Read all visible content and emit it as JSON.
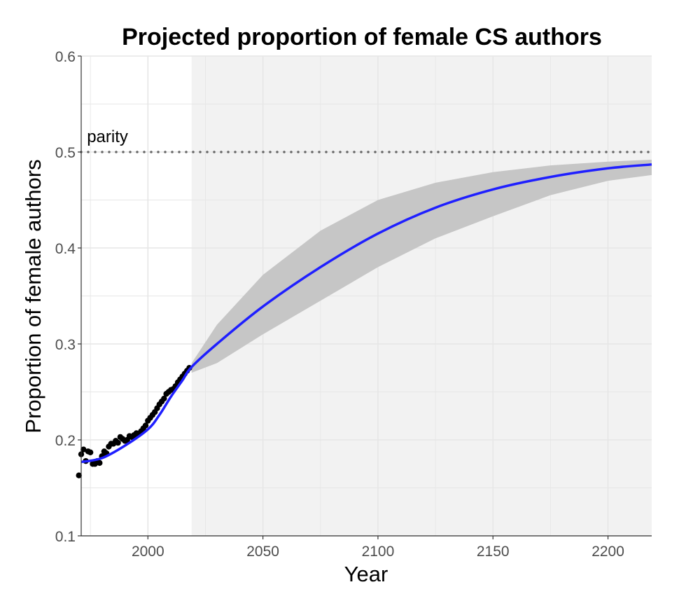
{
  "chart_data": {
    "type": "line",
    "title": "Projected proportion of female CS authors",
    "xlabel": "Year",
    "ylabel": "Proportion of female authors",
    "xlim": [
      1971,
      2219
    ],
    "ylim": [
      0.1,
      0.6
    ],
    "x_ticks": [
      2000,
      2050,
      2100,
      2150,
      2200
    ],
    "x_tick_labels": [
      "2000",
      "2050",
      "2100",
      "2150",
      "2200"
    ],
    "y_ticks": [
      0.1,
      0.2,
      0.3,
      0.4,
      0.5,
      0.6
    ],
    "y_tick_labels": [
      "0.1",
      "0.2",
      "0.3",
      "0.4",
      "0.5",
      "0.6"
    ],
    "grid": true,
    "projection_start": 2019,
    "reference_line": {
      "y": 0.5,
      "label": "parity",
      "style": "dotted"
    },
    "observed": {
      "x": [
        1970,
        1971,
        1972,
        1973,
        1974,
        1975,
        1976,
        1977,
        1978,
        1979,
        1980,
        1981,
        1982,
        1983,
        1984,
        1985,
        1986,
        1987,
        1988,
        1989,
        1990,
        1991,
        1992,
        1993,
        1994,
        1995,
        1996,
        1997,
        1998,
        1999,
        2000,
        2001,
        2002,
        2003,
        2004,
        2005,
        2006,
        2007,
        2008,
        2009,
        2010,
        2011,
        2012,
        2013,
        2014,
        2015,
        2016,
        2017,
        2018
      ],
      "y": [
        0.163,
        0.185,
        0.19,
        0.178,
        0.188,
        0.187,
        0.175,
        0.175,
        0.178,
        0.176,
        0.183,
        0.188,
        0.186,
        0.193,
        0.196,
        0.196,
        0.199,
        0.197,
        0.203,
        0.201,
        0.199,
        0.2,
        0.204,
        0.203,
        0.205,
        0.207,
        0.206,
        0.209,
        0.212,
        0.215,
        0.22,
        0.223,
        0.226,
        0.229,
        0.233,
        0.237,
        0.24,
        0.243,
        0.248,
        0.25,
        0.252,
        0.253,
        0.256,
        0.26,
        0.263,
        0.266,
        0.269,
        0.272,
        0.275
      ]
    },
    "fit": {
      "x": [
        1971,
        1980,
        1990,
        2000,
        2005,
        2010,
        2015,
        2019,
        2030,
        2050,
        2075,
        2100,
        2125,
        2150,
        2175,
        2200,
        2219
      ],
      "y": [
        0.177,
        0.181,
        0.194,
        0.211,
        0.226,
        0.245,
        0.262,
        0.276,
        0.3,
        0.339,
        0.38,
        0.415,
        0.442,
        0.461,
        0.474,
        0.483,
        0.487
      ]
    },
    "band": {
      "x": [
        2019,
        2030,
        2050,
        2075,
        2100,
        2125,
        2150,
        2175,
        2200,
        2219
      ],
      "lower": [
        0.27,
        0.28,
        0.31,
        0.345,
        0.38,
        0.41,
        0.433,
        0.455,
        0.47,
        0.476
      ],
      "upper": [
        0.28,
        0.32,
        0.372,
        0.418,
        0.45,
        0.468,
        0.479,
        0.486,
        0.49,
        0.492
      ]
    },
    "colors": {
      "fit": "#1f1fff",
      "band": "#c6c6c6",
      "projection_bg": "#f2f2f2",
      "points": "#000000"
    }
  }
}
